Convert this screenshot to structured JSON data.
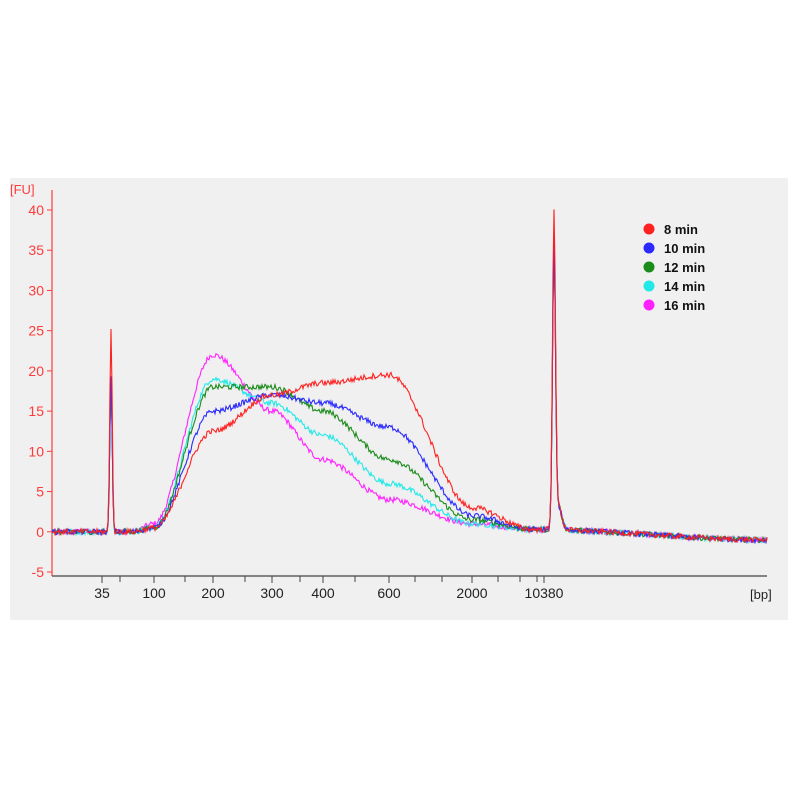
{
  "chart_data": {
    "type": "line",
    "ylabel": "[FU]",
    "xlabel": "[bp]",
    "ylim": [
      -5,
      40
    ],
    "y_ticks": [
      "40",
      "35",
      "30",
      "25",
      "20",
      "15",
      "10",
      "5",
      "0",
      "-5"
    ],
    "x_ticks": [
      "35",
      "100",
      "200",
      "300",
      "400",
      "600",
      "2000",
      "10380"
    ],
    "x_scale": "non-linear (marker-calibrated electropherogram)",
    "grid": false,
    "legend_position": "top-right",
    "marker_peaks": [
      {
        "x": "35",
        "height": 25.5
      },
      {
        "x": "10380",
        "height": 38.5
      }
    ],
    "series": [
      {
        "name": "8 min",
        "color": "#ff2020",
        "points": [
          [
            "35",
            0
          ],
          [
            "100",
            0.5
          ],
          [
            "200",
            12.5
          ],
          [
            "300",
            17
          ],
          [
            "400",
            18.5
          ],
          [
            "600",
            19.5
          ],
          [
            "2000",
            3
          ],
          [
            "10380",
            0
          ]
        ]
      },
      {
        "name": "10 min",
        "color": "#2a2aff",
        "points": [
          [
            "35",
            0
          ],
          [
            "100",
            0.5
          ],
          [
            "200",
            15
          ],
          [
            "300",
            17
          ],
          [
            "400",
            16
          ],
          [
            "600",
            13
          ],
          [
            "2000",
            2
          ],
          [
            "10380",
            0
          ]
        ]
      },
      {
        "name": "12 min",
        "color": "#1a8c1a",
        "points": [
          [
            "35",
            0
          ],
          [
            "100",
            0.5
          ],
          [
            "200",
            18
          ],
          [
            "300",
            18
          ],
          [
            "400",
            15
          ],
          [
            "600",
            9
          ],
          [
            "2000",
            1.5
          ],
          [
            "10380",
            0
          ]
        ]
      },
      {
        "name": "14 min",
        "color": "#22e8e8",
        "points": [
          [
            "35",
            0
          ],
          [
            "100",
            0.5
          ],
          [
            "200",
            19
          ],
          [
            "300",
            16
          ],
          [
            "400",
            12
          ],
          [
            "600",
            6
          ],
          [
            "2000",
            1
          ],
          [
            "10380",
            0
          ]
        ]
      },
      {
        "name": "16 min",
        "color": "#ff22ff",
        "points": [
          [
            "35",
            0
          ],
          [
            "100",
            1
          ],
          [
            "200",
            22
          ],
          [
            "300",
            15
          ],
          [
            "400",
            9
          ],
          [
            "600",
            4
          ],
          [
            "2000",
            1
          ],
          [
            "10380",
            0
          ]
        ]
      }
    ]
  }
}
